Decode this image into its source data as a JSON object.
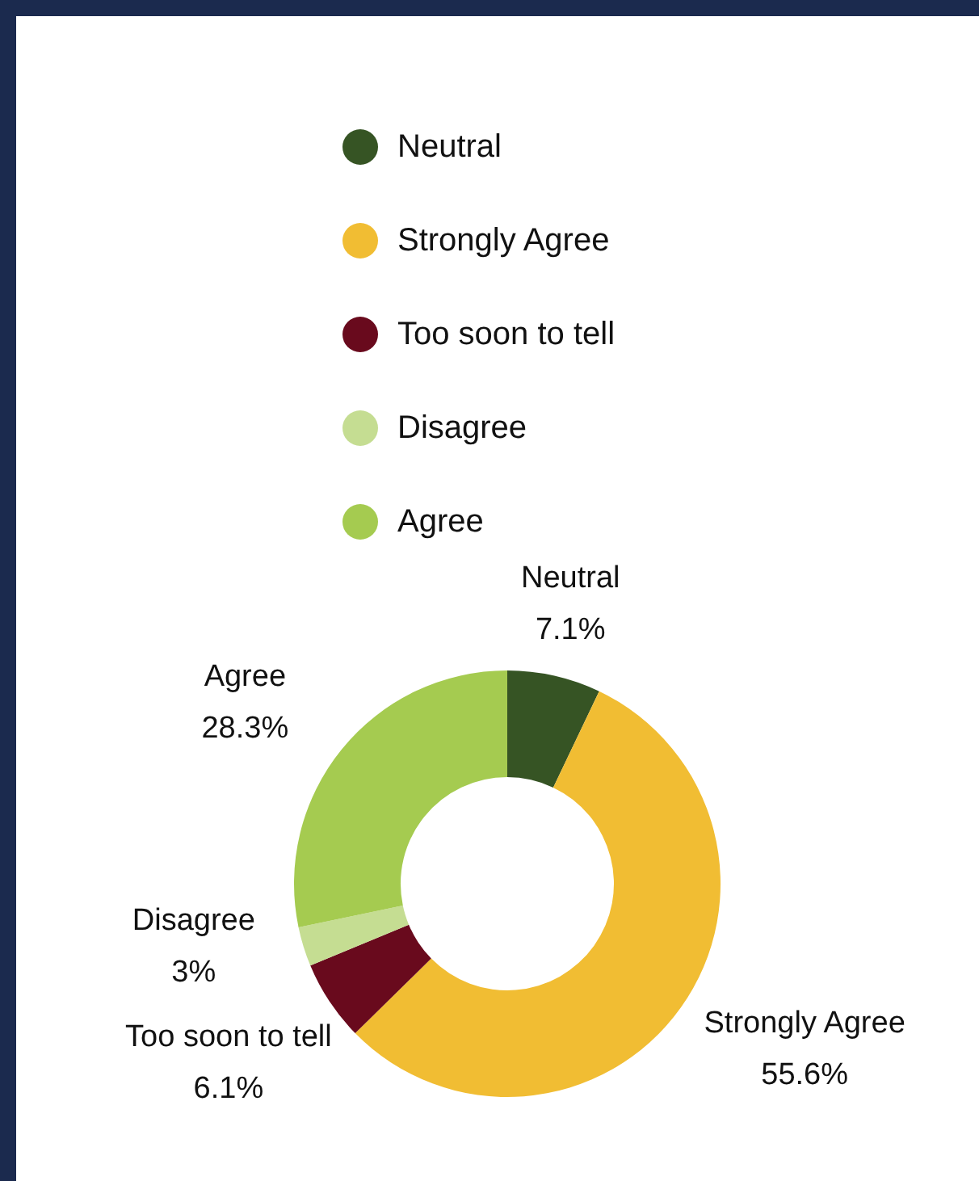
{
  "chart_data": {
    "type": "donut",
    "categories": [
      "Neutral",
      "Strongly Agree",
      "Too soon to tell",
      "Disagree",
      "Agree"
    ],
    "values": [
      7.1,
      55.6,
      6.1,
      3,
      28.3
    ],
    "colors": [
      "#365424",
      "#f1bd33",
      "#690a1d",
      "#c5dd92",
      "#a5cb50"
    ],
    "value_labels": [
      "7.1%",
      "55.6%",
      "6.1%",
      "3%",
      "28.3%"
    ],
    "legend": "top"
  }
}
